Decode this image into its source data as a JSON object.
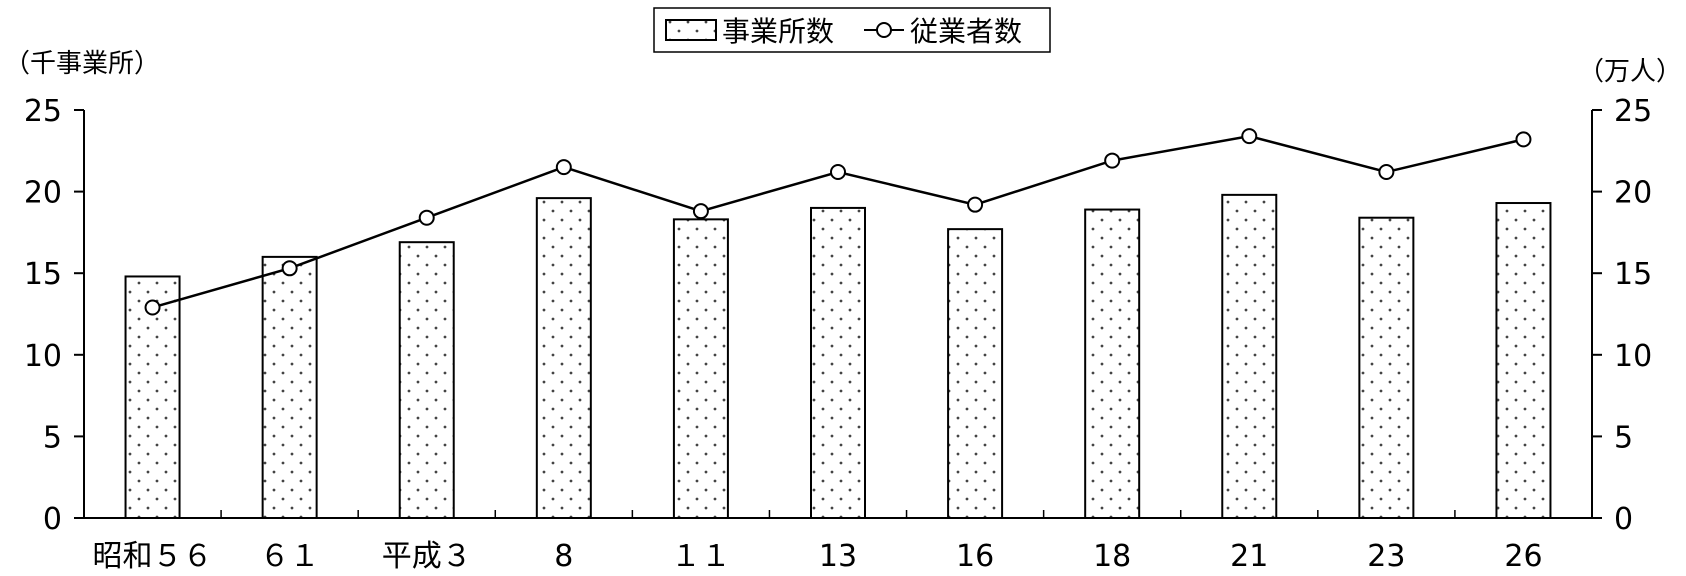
{
  "chart_data": {
    "type": "bar",
    "categories": [
      "昭和５６",
      "６１",
      "平成３",
      "8",
      "１１",
      "13",
      "16",
      "18",
      "21",
      "23",
      "26"
    ],
    "series": [
      {
        "name": "事業所数",
        "type": "bar",
        "axis": "left",
        "values": [
          14.8,
          16.0,
          16.9,
          19.6,
          18.3,
          19.0,
          17.7,
          18.9,
          19.8,
          18.4,
          19.3
        ]
      },
      {
        "name": "従業者数",
        "type": "line",
        "axis": "right",
        "values": [
          12.9,
          15.3,
          18.4,
          21.5,
          18.8,
          21.2,
          19.2,
          21.9,
          23.4,
          21.2,
          23.2
        ]
      }
    ],
    "y_left": {
      "label": "（千事業所）",
      "range": [
        0,
        25
      ],
      "ticks": [
        "0",
        "5",
        "10",
        "15",
        "20",
        "25"
      ]
    },
    "y_right": {
      "label": "（万人）",
      "range": [
        0,
        25
      ],
      "ticks": [
        "0",
        "5",
        "10",
        "15",
        "20",
        "25"
      ]
    },
    "grid": false,
    "legend_placement": "top-center",
    "colors": {
      "bar_fill": "#ffffff",
      "bar_dots": "#444444",
      "line": "#000000",
      "marker_fill": "#ffffff"
    }
  }
}
